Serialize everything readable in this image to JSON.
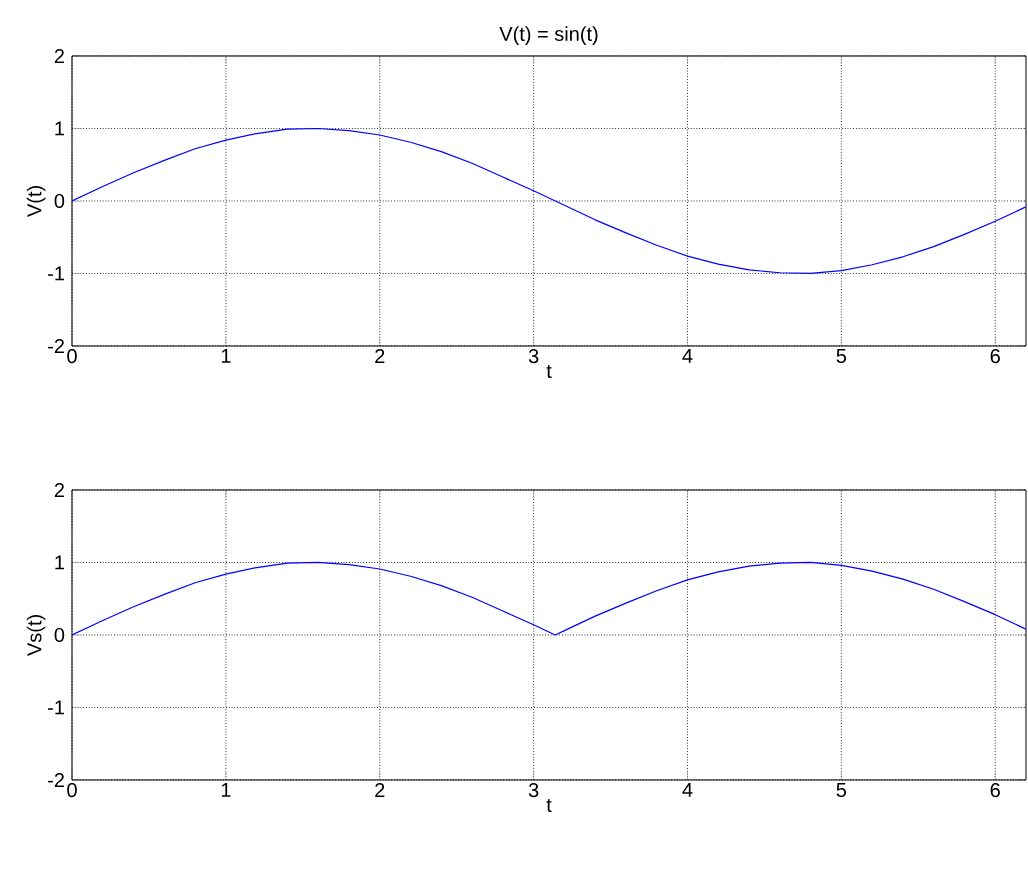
{
  "chart_data": [
    {
      "type": "line",
      "title": "V(t) = sin(t)",
      "xlabel": "t",
      "ylabel": "V(t)",
      "xlim": [
        0,
        6.2
      ],
      "ylim": [
        -2,
        2
      ],
      "xticks": [
        0,
        1,
        2,
        3,
        4,
        5,
        6
      ],
      "yticks": [
        -2,
        -1,
        0,
        1,
        2
      ],
      "grid": true,
      "marker": "none",
      "line_style": "solid",
      "series": [
        {
          "color": "#0000ff",
          "x": [
            0,
            0.2,
            0.4,
            0.6,
            0.8,
            1.0,
            1.2,
            1.4,
            1.6,
            1.8,
            2.0,
            2.2,
            2.4,
            2.6,
            2.8,
            3.0,
            3.2,
            3.4,
            3.6,
            3.8,
            4.0,
            4.2,
            4.4,
            4.6,
            4.8,
            5.0,
            5.2,
            5.4,
            5.6,
            5.8,
            6.0,
            6.2
          ],
          "values": [
            0,
            0.2,
            0.39,
            0.56,
            0.72,
            0.84,
            0.93,
            0.99,
            1.0,
            0.97,
            0.91,
            0.81,
            0.68,
            0.52,
            0.33,
            0.14,
            -0.06,
            -0.26,
            -0.44,
            -0.61,
            -0.76,
            -0.87,
            -0.95,
            -0.99,
            -1.0,
            -0.96,
            -0.88,
            -0.77,
            -0.63,
            -0.46,
            -0.28,
            -0.08
          ]
        }
      ]
    },
    {
      "type": "line",
      "xlabel": "t",
      "ylabel": "Vs(t)",
      "xlim": [
        0,
        6.2
      ],
      "ylim": [
        -2,
        2
      ],
      "xticks": [
        0,
        1,
        2,
        3,
        4,
        5,
        6
      ],
      "yticks": [
        -2,
        -1,
        0,
        1,
        2
      ],
      "grid": true,
      "marker": "none",
      "line_style": "solid",
      "series": [
        {
          "color": "#0000ff",
          "x": [
            0,
            0.2,
            0.4,
            0.6,
            0.8,
            1.0,
            1.2,
            1.4,
            1.6,
            1.8,
            2.0,
            2.2,
            2.4,
            2.6,
            2.8,
            3.0,
            3.14,
            3.2,
            3.4,
            3.6,
            3.8,
            4.0,
            4.2,
            4.4,
            4.6,
            4.8,
            5.0,
            5.2,
            5.4,
            5.6,
            5.8,
            6.0,
            6.2
          ],
          "values": [
            0,
            0.2,
            0.39,
            0.56,
            0.72,
            0.84,
            0.93,
            0.99,
            1.0,
            0.97,
            0.91,
            0.81,
            0.68,
            0.52,
            0.33,
            0.14,
            0,
            0.06,
            0.26,
            0.44,
            0.61,
            0.76,
            0.87,
            0.95,
            0.99,
            1.0,
            0.96,
            0.88,
            0.77,
            0.63,
            0.46,
            0.28,
            0.08
          ]
        }
      ]
    }
  ]
}
